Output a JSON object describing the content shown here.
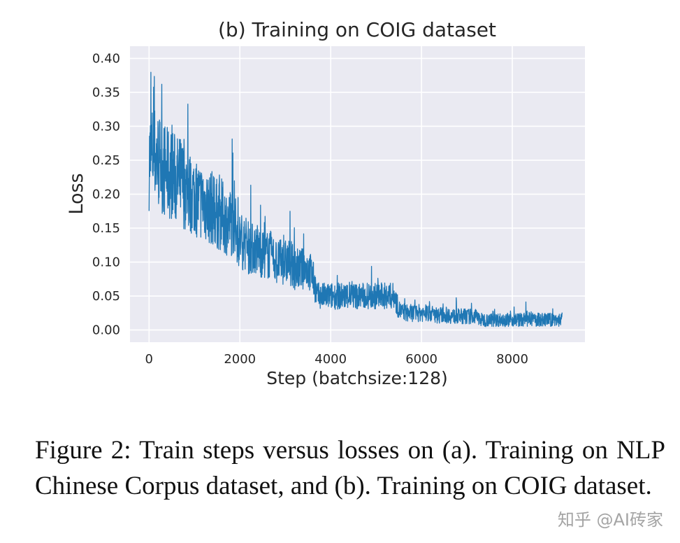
{
  "chart_data": {
    "type": "line",
    "title": "(b) Training on COIG dataset",
    "xlabel": "Step (batchsize:128)",
    "ylabel": "Loss",
    "xlim": [
      -420,
      9600
    ],
    "ylim": [
      -0.018,
      0.418
    ],
    "xticks": [
      "0",
      "2000",
      "4000",
      "6000",
      "8000"
    ],
    "yticks": [
      "0.00",
      "0.05",
      "0.10",
      "0.15",
      "0.20",
      "0.25",
      "0.30",
      "0.35",
      "0.40"
    ],
    "grid": true,
    "series": [
      {
        "color": "#1f77b4",
        "noise_amplitude": 0.06,
        "x": [
          0,
          100,
          200,
          300,
          400,
          500,
          600,
          700,
          800,
          900,
          1000,
          1100,
          1200,
          1300,
          1400,
          1500,
          1600,
          1700,
          1800,
          1900,
          2000,
          2100,
          2200,
          2300,
          2400,
          2500,
          2600,
          2700,
          2800,
          2900,
          3000,
          3100,
          3200,
          3300,
          3400,
          3500,
          3600,
          3700,
          3800,
          3900,
          4000,
          4100,
          4200,
          4300,
          4400,
          4500,
          4600,
          4700,
          4800,
          4900,
          5000,
          5100,
          5200,
          5300,
          5400,
          5500,
          5600,
          5700,
          5800,
          5900,
          6000,
          6100,
          6200,
          6300,
          6400,
          6500,
          6600,
          6700,
          6800,
          6900,
          7000,
          7100,
          7200,
          7300,
          7400,
          7500,
          7600,
          7700,
          7800,
          7900,
          8000,
          8100,
          8200,
          8300,
          8400,
          8500,
          8600,
          8700,
          8800,
          8900,
          9000,
          9100
        ],
        "y": [
          0.25,
          0.26,
          0.25,
          0.24,
          0.23,
          0.23,
          0.22,
          0.22,
          0.21,
          0.2,
          0.2,
          0.19,
          0.19,
          0.18,
          0.18,
          0.17,
          0.17,
          0.16,
          0.16,
          0.15,
          0.13,
          0.13,
          0.12,
          0.12,
          0.12,
          0.11,
          0.11,
          0.11,
          0.1,
          0.1,
          0.1,
          0.1,
          0.09,
          0.09,
          0.09,
          0.09,
          0.08,
          0.05,
          0.05,
          0.05,
          0.05,
          0.05,
          0.05,
          0.05,
          0.05,
          0.05,
          0.05,
          0.05,
          0.05,
          0.05,
          0.05,
          0.05,
          0.05,
          0.05,
          0.05,
          0.03,
          0.025,
          0.025,
          0.025,
          0.025,
          0.025,
          0.025,
          0.025,
          0.022,
          0.022,
          0.022,
          0.022,
          0.02,
          0.02,
          0.02,
          0.02,
          0.02,
          0.02,
          0.015,
          0.015,
          0.015,
          0.015,
          0.015,
          0.015,
          0.015,
          0.015,
          0.015,
          0.015,
          0.015,
          0.015,
          0.015,
          0.015,
          0.015,
          0.015,
          0.015,
          0.015,
          0.015
        ]
      }
    ]
  },
  "caption": "Figure 2: Train steps versus losses on (a). Training on NLP Chinese Corpus dataset, and (b). Training on COIG dataset.",
  "watermark": "知乎 @AI砖家"
}
